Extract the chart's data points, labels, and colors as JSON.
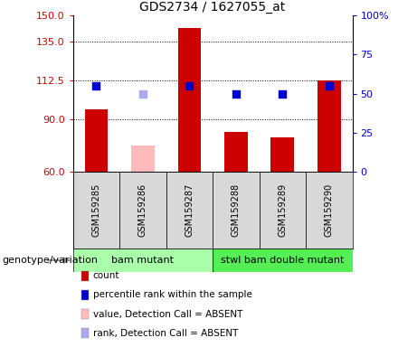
{
  "title": "GDS2734 / 1627055_at",
  "samples": [
    "GSM159285",
    "GSM159286",
    "GSM159287",
    "GSM159288",
    "GSM159289",
    "GSM159290"
  ],
  "bar_values": [
    96,
    75,
    143,
    83,
    80,
    112.5
  ],
  "bar_colors": [
    "#cc0000",
    "#ffbbbb",
    "#cc0000",
    "#cc0000",
    "#cc0000",
    "#cc0000"
  ],
  "absent_flags": [
    false,
    true,
    false,
    false,
    false,
    false
  ],
  "percentile_values": [
    55,
    50,
    55,
    50,
    50,
    55
  ],
  "percentile_colors": [
    "#0000cc",
    "#0000cc",
    "#0000cc",
    "#0000cc",
    "#0000cc",
    "#0000cc"
  ],
  "rank_absent_flags": [
    false,
    true,
    false,
    false,
    false,
    false
  ],
  "rank_absent_color": "#aaaaee",
  "ylim_left": [
    60,
    150
  ],
  "ylim_right": [
    0,
    100
  ],
  "yticks_left": [
    60,
    90,
    112.5,
    135,
    150
  ],
  "yticks_right": [
    0,
    25,
    50,
    75,
    100
  ],
  "ytick_right_labels": [
    "0",
    "25",
    "50",
    "75",
    "100%"
  ],
  "dotted_vals": [
    90,
    112.5,
    135
  ],
  "groups": [
    {
      "label": "bam mutant",
      "indices": [
        0,
        1,
        2
      ],
      "color": "#aaffaa"
    },
    {
      "label": "stwl bam double mutant",
      "indices": [
        3,
        4,
        5
      ],
      "color": "#55ee55"
    }
  ],
  "genotype_label": "genotype/variation",
  "legend_items": [
    {
      "label": "count",
      "color": "#cc0000"
    },
    {
      "label": "percentile rank within the sample",
      "color": "#0000cc"
    },
    {
      "label": "value, Detection Call = ABSENT",
      "color": "#ffbbbb"
    },
    {
      "label": "rank, Detection Call = ABSENT",
      "color": "#aaaaee"
    }
  ],
  "bar_width": 0.5,
  "dot_size": 30,
  "left_tick_color": "#cc0000",
  "right_tick_color": "#0000cc",
  "title_fontsize": 10,
  "tick_fontsize": 8,
  "sample_fontsize": 7,
  "legend_fontsize": 7.5,
  "group_fontsize": 8,
  "genotype_fontsize": 8
}
